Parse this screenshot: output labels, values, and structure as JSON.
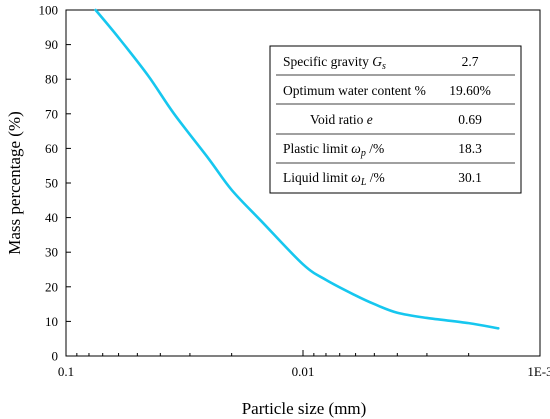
{
  "chart_data": {
    "type": "line",
    "xlabel": "Particle size (mm)",
    "ylabel": "Mass percentage (%)",
    "x_scale": "log",
    "x_direction": "decreasing",
    "xlim": [
      0.1,
      0.001
    ],
    "ylim": [
      0,
      100
    ],
    "x_ticks": [
      {
        "value": 0.1,
        "label": "0.1"
      },
      {
        "value": 0.01,
        "label": "0.01"
      },
      {
        "value": 0.001,
        "label": "1E-3"
      }
    ],
    "y_ticks": [
      0,
      10,
      20,
      30,
      40,
      50,
      60,
      70,
      80,
      90,
      100
    ],
    "grid": false,
    "series": [
      {
        "color": "#16c7ef",
        "x": [
          0.075,
          0.06,
          0.045,
          0.035,
          0.025,
          0.02,
          0.015,
          0.01,
          0.008,
          0.006,
          0.005,
          0.004,
          0.003,
          0.002,
          0.0015
        ],
        "y": [
          100,
          92,
          81,
          70,
          57,
          48,
          39,
          26.5,
          22,
          17.5,
          15,
          12.5,
          11,
          9.5,
          8
        ]
      }
    ],
    "table": {
      "rows": [
        {
          "label_pre": "Specific gravity ",
          "symbol": "G",
          "sub": "s",
          "label_post": "",
          "value": "2.7"
        },
        {
          "label_pre": "Optimum water content %",
          "symbol": "",
          "sub": "",
          "label_post": "",
          "value": "19.60%"
        },
        {
          "label_pre": "Void ratio ",
          "symbol": "e",
          "sub": "",
          "label_post": "",
          "value": "0.69"
        },
        {
          "label_pre": "Plastic limit ",
          "symbol": "ω",
          "sub": "p",
          "label_post": " /%",
          "value": "18.3"
        },
        {
          "label_pre": "Liquid limit ",
          "symbol": "ω",
          "sub": "L",
          "label_post": " /%",
          "value": "30.1"
        }
      ]
    }
  }
}
